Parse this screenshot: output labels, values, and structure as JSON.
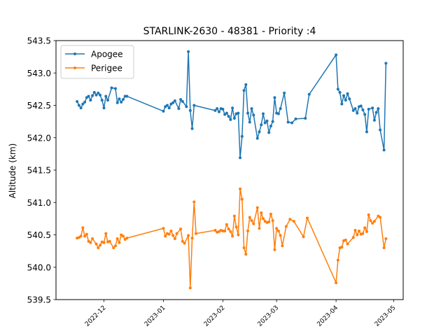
{
  "chart_data": {
    "type": "line",
    "title": "STARLINK-2630 - 48381 - Priority :4",
    "xlabel": "",
    "ylabel": "Altitude (km)",
    "xlim": [
      "2022-11-06",
      "2023-05-06"
    ],
    "ylim": [
      539.5,
      543.5
    ],
    "x_ticks": [
      {
        "date": "2022-12-01",
        "label": "2022-12"
      },
      {
        "date": "2023-01-01",
        "label": "2023-01"
      },
      {
        "date": "2023-02-01",
        "label": "2023-02"
      },
      {
        "date": "2023-03-01",
        "label": "2023-03"
      },
      {
        "date": "2023-04-01",
        "label": "2023-04"
      },
      {
        "date": "2023-05-01",
        "label": "2023-05"
      }
    ],
    "y_ticks": [
      "539.5",
      "540.0",
      "540.5",
      "541.0",
      "541.5",
      "542.0",
      "542.5",
      "543.0",
      "543.5"
    ],
    "grid": false,
    "legend_position": "top-left",
    "series": [
      {
        "name": "Apogee",
        "color": "#1f77b4",
        "points": [
          [
            "2022-11-17",
            542.56
          ],
          [
            "2022-11-18",
            542.5
          ],
          [
            "2022-11-19",
            542.46
          ],
          [
            "2022-11-20",
            542.52
          ],
          [
            "2022-11-21",
            542.55
          ],
          [
            "2022-11-22",
            542.62
          ],
          [
            "2022-11-23",
            542.64
          ],
          [
            "2022-11-24",
            542.58
          ],
          [
            "2022-11-25",
            542.65
          ],
          [
            "2022-11-26",
            542.7
          ],
          [
            "2022-11-27",
            542.66
          ],
          [
            "2022-11-28",
            542.69
          ],
          [
            "2022-11-29",
            542.66
          ],
          [
            "2022-11-30",
            542.58
          ],
          [
            "2022-12-01",
            542.46
          ],
          [
            "2022-12-02",
            542.64
          ],
          [
            "2022-12-03",
            542.58
          ],
          [
            "2022-12-05",
            542.77
          ],
          [
            "2022-12-07",
            542.76
          ],
          [
            "2022-12-08",
            542.54
          ],
          [
            "2022-12-09",
            542.6
          ],
          [
            "2022-12-10",
            542.55
          ],
          [
            "2022-12-11",
            542.59
          ],
          [
            "2022-12-12",
            542.64
          ],
          [
            "2022-12-13",
            542.64
          ],
          [
            "2023-01-01",
            542.41
          ],
          [
            "2023-01-02",
            542.48
          ],
          [
            "2023-01-03",
            542.5
          ],
          [
            "2023-01-04",
            542.46
          ],
          [
            "2023-01-05",
            542.52
          ],
          [
            "2023-01-06",
            542.54
          ],
          [
            "2023-01-07",
            542.57
          ],
          [
            "2023-01-09",
            542.45
          ],
          [
            "2023-01-10",
            542.59
          ],
          [
            "2023-01-11",
            542.56
          ],
          [
            "2023-01-13",
            542.48
          ],
          [
            "2023-01-14",
            543.33
          ],
          [
            "2023-01-15",
            542.42
          ],
          [
            "2023-01-16",
            542.14
          ],
          [
            "2023-01-17",
            542.5
          ],
          [
            "2023-01-28",
            542.42
          ],
          [
            "2023-01-29",
            542.45
          ],
          [
            "2023-01-30",
            542.4
          ],
          [
            "2023-01-31",
            542.45
          ],
          [
            "2023-02-01",
            542.44
          ],
          [
            "2023-02-02",
            542.36
          ],
          [
            "2023-02-03",
            542.38
          ],
          [
            "2023-02-04",
            542.33
          ],
          [
            "2023-02-05",
            542.28
          ],
          [
            "2023-02-06",
            542.46
          ],
          [
            "2023-02-07",
            542.3
          ],
          [
            "2023-02-08",
            542.37
          ],
          [
            "2023-02-09",
            542.38
          ],
          [
            "2023-02-10",
            541.69
          ],
          [
            "2023-02-11",
            542.02
          ],
          [
            "2023-02-12",
            542.73
          ],
          [
            "2023-02-13",
            542.82
          ],
          [
            "2023-02-14",
            542.38
          ],
          [
            "2023-02-15",
            542.24
          ],
          [
            "2023-02-16",
            542.45
          ],
          [
            "2023-02-17",
            542.35
          ],
          [
            "2023-02-19",
            541.99
          ],
          [
            "2023-02-20",
            542.09
          ],
          [
            "2023-02-21",
            542.2
          ],
          [
            "2023-02-22",
            542.37
          ],
          [
            "2023-02-23",
            542.23
          ],
          [
            "2023-02-24",
            542.26
          ],
          [
            "2023-02-25",
            542.08
          ],
          [
            "2023-02-26",
            542.18
          ],
          [
            "2023-02-27",
            542.25
          ],
          [
            "2023-02-28",
            542.62
          ],
          [
            "2023-03-01",
            542.38
          ],
          [
            "2023-03-02",
            542.37
          ],
          [
            "2023-03-03",
            542.45
          ],
          [
            "2023-03-05",
            542.69
          ],
          [
            "2023-03-07",
            542.24
          ],
          [
            "2023-03-09",
            542.23
          ],
          [
            "2023-03-11",
            542.29
          ],
          [
            "2023-03-16",
            542.3
          ],
          [
            "2023-03-18",
            542.67
          ],
          [
            "2023-04-01",
            543.28
          ],
          [
            "2023-04-02",
            542.75
          ],
          [
            "2023-04-03",
            542.7
          ],
          [
            "2023-04-04",
            542.52
          ],
          [
            "2023-04-05",
            542.65
          ],
          [
            "2023-04-06",
            542.58
          ],
          [
            "2023-04-07",
            542.68
          ],
          [
            "2023-04-08",
            542.6
          ],
          [
            "2023-04-10",
            542.42
          ],
          [
            "2023-04-11",
            542.45
          ],
          [
            "2023-04-12",
            542.38
          ],
          [
            "2023-04-13",
            542.48
          ],
          [
            "2023-04-14",
            542.49
          ],
          [
            "2023-04-15",
            542.43
          ],
          [
            "2023-04-16",
            542.36
          ],
          [
            "2023-04-17",
            542.09
          ],
          [
            "2023-04-18",
            542.44
          ],
          [
            "2023-04-20",
            542.46
          ],
          [
            "2023-04-21",
            542.27
          ],
          [
            "2023-04-22",
            542.39
          ],
          [
            "2023-04-23",
            542.45
          ],
          [
            "2023-04-24",
            542.12
          ],
          [
            "2023-04-26",
            541.81
          ],
          [
            "2023-04-27",
            543.15
          ]
        ]
      },
      {
        "name": "Perigee",
        "color": "#ff7f0e",
        "points": [
          [
            "2022-11-17",
            540.45
          ],
          [
            "2022-11-18",
            540.46
          ],
          [
            "2022-11-19",
            540.48
          ],
          [
            "2022-11-20",
            540.61
          ],
          [
            "2022-11-21",
            540.48
          ],
          [
            "2022-11-22",
            540.51
          ],
          [
            "2022-11-23",
            540.4
          ],
          [
            "2022-11-24",
            540.38
          ],
          [
            "2022-11-25",
            540.44
          ],
          [
            "2022-11-27",
            540.36
          ],
          [
            "2022-11-28",
            540.3
          ],
          [
            "2022-11-29",
            540.34
          ],
          [
            "2022-11-30",
            540.39
          ],
          [
            "2022-12-01",
            540.38
          ],
          [
            "2022-12-02",
            540.52
          ],
          [
            "2022-12-03",
            540.39
          ],
          [
            "2022-12-04",
            540.4
          ],
          [
            "2022-12-06",
            540.3
          ],
          [
            "2022-12-07",
            540.33
          ],
          [
            "2022-12-08",
            540.44
          ],
          [
            "2022-12-09",
            540.38
          ],
          [
            "2022-12-10",
            540.5
          ],
          [
            "2022-12-11",
            540.48
          ],
          [
            "2022-12-12",
            540.43
          ],
          [
            "2022-12-13",
            540.45
          ],
          [
            "2023-01-01",
            540.6
          ],
          [
            "2023-01-02",
            540.48
          ],
          [
            "2023-01-03",
            540.52
          ],
          [
            "2023-01-04",
            540.51
          ],
          [
            "2023-01-05",
            540.56
          ],
          [
            "2023-01-06",
            540.49
          ],
          [
            "2023-01-07",
            540.44
          ],
          [
            "2023-01-08",
            540.52
          ],
          [
            "2023-01-10",
            540.59
          ],
          [
            "2023-01-11",
            540.4
          ],
          [
            "2023-01-12",
            540.37
          ],
          [
            "2023-01-14",
            540.49
          ],
          [
            "2023-01-15",
            539.68
          ],
          [
            "2023-01-16",
            540.45
          ],
          [
            "2023-01-17",
            541.01
          ],
          [
            "2023-01-18",
            540.52
          ],
          [
            "2023-01-28",
            540.57
          ],
          [
            "2023-01-29",
            540.54
          ],
          [
            "2023-01-30",
            540.55
          ],
          [
            "2023-01-31",
            540.57
          ],
          [
            "2023-02-01",
            540.56
          ],
          [
            "2023-02-02",
            540.56
          ],
          [
            "2023-02-03",
            540.66
          ],
          [
            "2023-02-04",
            540.59
          ],
          [
            "2023-02-05",
            540.55
          ],
          [
            "2023-02-06",
            540.48
          ],
          [
            "2023-02-07",
            540.79
          ],
          [
            "2023-02-08",
            540.62
          ],
          [
            "2023-02-09",
            540.5
          ],
          [
            "2023-02-10",
            541.21
          ],
          [
            "2023-02-11",
            541.05
          ],
          [
            "2023-02-12",
            540.3
          ],
          [
            "2023-02-13",
            540.2
          ],
          [
            "2023-02-14",
            540.56
          ],
          [
            "2023-02-15",
            540.77
          ],
          [
            "2023-02-16",
            540.72
          ],
          [
            "2023-02-17",
            540.67
          ],
          [
            "2023-02-19",
            540.92
          ],
          [
            "2023-02-20",
            540.6
          ],
          [
            "2023-02-21",
            540.84
          ],
          [
            "2023-02-22",
            540.75
          ],
          [
            "2023-02-23",
            540.71
          ],
          [
            "2023-02-24",
            540.69
          ],
          [
            "2023-02-25",
            540.7
          ],
          [
            "2023-02-26",
            540.82
          ],
          [
            "2023-02-27",
            540.72
          ],
          [
            "2023-02-28",
            540.27
          ],
          [
            "2023-03-01",
            540.6
          ],
          [
            "2023-03-02",
            540.56
          ],
          [
            "2023-03-03",
            540.49
          ],
          [
            "2023-03-04",
            540.33
          ],
          [
            "2023-03-06",
            540.63
          ],
          [
            "2023-03-08",
            540.74
          ],
          [
            "2023-03-10",
            540.71
          ],
          [
            "2023-03-15",
            540.47
          ],
          [
            "2023-03-17",
            540.76
          ],
          [
            "2023-04-01",
            539.76
          ],
          [
            "2023-04-02",
            540.11
          ],
          [
            "2023-04-03",
            540.3
          ],
          [
            "2023-04-04",
            540.31
          ],
          [
            "2023-04-05",
            540.41
          ],
          [
            "2023-04-06",
            540.42
          ],
          [
            "2023-04-07",
            540.36
          ],
          [
            "2023-04-10",
            540.46
          ],
          [
            "2023-04-11",
            540.57
          ],
          [
            "2023-04-12",
            540.5
          ],
          [
            "2023-04-13",
            540.56
          ],
          [
            "2023-04-14",
            540.51
          ],
          [
            "2023-04-15",
            540.52
          ],
          [
            "2023-04-16",
            540.61
          ],
          [
            "2023-04-17",
            540.55
          ],
          [
            "2023-04-18",
            540.81
          ],
          [
            "2023-04-19",
            540.72
          ],
          [
            "2023-04-20",
            540.68
          ],
          [
            "2023-04-21",
            540.71
          ],
          [
            "2023-04-23",
            540.79
          ],
          [
            "2023-04-24",
            540.77
          ],
          [
            "2023-04-26",
            540.3
          ],
          [
            "2023-04-27",
            540.44
          ]
        ]
      }
    ]
  }
}
